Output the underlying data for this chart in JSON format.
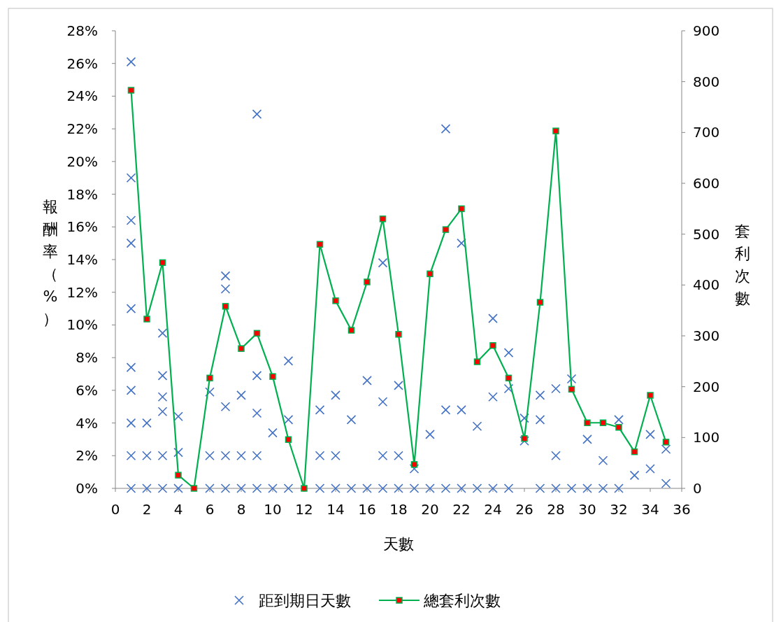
{
  "chart_data": {
    "type": "scatter",
    "xlabel": "天數",
    "ylabel": "報酬率（%）",
    "y2label": "套利次數",
    "xlim": [
      0,
      36
    ],
    "xticks": [
      0,
      2,
      4,
      6,
      8,
      10,
      12,
      14,
      16,
      18,
      20,
      22,
      24,
      26,
      28,
      30,
      32,
      34,
      36
    ],
    "ylim": [
      0,
      28
    ],
    "yticks": [
      {
        "value": 0,
        "label": "0%"
      },
      {
        "value": 2,
        "label": "2%"
      },
      {
        "value": 4,
        "label": "4%"
      },
      {
        "value": 6,
        "label": "6%"
      },
      {
        "value": 8,
        "label": "8%"
      },
      {
        "value": 10,
        "label": "10%"
      },
      {
        "value": 12,
        "label": "12%"
      },
      {
        "value": 14,
        "label": "14%"
      },
      {
        "value": 16,
        "label": "16%"
      },
      {
        "value": 18,
        "label": "18%"
      },
      {
        "value": 20,
        "label": "20%"
      },
      {
        "value": 22,
        "label": "22%"
      },
      {
        "value": 24,
        "label": "24%"
      },
      {
        "value": 26,
        "label": "26%"
      },
      {
        "value": 28,
        "label": "28%"
      }
    ],
    "y2lim": [
      0,
      900
    ],
    "y2ticks": [
      0,
      100,
      200,
      300,
      400,
      500,
      600,
      700,
      800,
      900
    ],
    "grid": false,
    "legend": "bottom",
    "series": [
      {
        "name": "距到期日天數",
        "marker": "cross",
        "color": "#4472c4",
        "x": [
          1,
          1,
          1,
          1,
          1,
          1,
          1,
          1,
          1,
          1,
          2,
          2,
          2,
          3,
          3,
          3,
          3,
          3,
          3,
          4,
          4,
          4,
          6,
          6,
          6,
          7,
          7,
          7,
          7,
          7,
          8,
          8,
          8,
          9,
          9,
          9,
          9,
          9,
          10,
          10,
          11,
          11,
          11,
          13,
          13,
          13,
          14,
          14,
          14,
          15,
          15,
          16,
          16,
          17,
          17,
          17,
          17,
          18,
          18,
          18,
          19,
          19,
          20,
          20,
          21,
          21,
          21,
          22,
          22,
          22,
          23,
          23,
          24,
          24,
          24,
          25,
          25,
          25,
          26,
          26,
          27,
          27,
          27,
          28,
          28,
          28,
          29,
          29,
          30,
          30,
          31,
          31,
          32,
          32,
          33,
          34,
          34,
          35,
          35
        ],
        "values": [
          26.1,
          19.0,
          16.4,
          15.0,
          11.0,
          7.4,
          6.0,
          4.0,
          2.0,
          0,
          4.0,
          2.0,
          0,
          9.5,
          6.9,
          5.6,
          4.7,
          2.0,
          0,
          4.4,
          2.2,
          0,
          5.9,
          2.0,
          0,
          13.0,
          12.2,
          5.0,
          2.0,
          0,
          5.7,
          2.0,
          0,
          22.9,
          6.9,
          4.6,
          2.0,
          0,
          3.4,
          0,
          7.8,
          4.2,
          0,
          4.8,
          2.0,
          0,
          5.7,
          2.0,
          0,
          4.2,
          0,
          6.6,
          0,
          13.8,
          5.3,
          2.0,
          0,
          6.3,
          2.0,
          0,
          1.2,
          0,
          3.3,
          0,
          22.0,
          4.8,
          0,
          15.0,
          4.8,
          0,
          3.8,
          0,
          10.4,
          5.6,
          0,
          8.3,
          6.1,
          0,
          4.3,
          2.9,
          5.7,
          4.2,
          0,
          6.1,
          2.0,
          0,
          6.7,
          0,
          3.0,
          0,
          1.7,
          0,
          4.2,
          0,
          0.8,
          3.3,
          1.2,
          2.4,
          0.3
        ]
      },
      {
        "name": "總套利次數",
        "type": "line",
        "axis": "y2",
        "marker": "square",
        "line_style": "solid",
        "color": "#00b050",
        "x": [
          1,
          2,
          3,
          4,
          5,
          6,
          7,
          8,
          9,
          10,
          11,
          12,
          13,
          14,
          15,
          16,
          17,
          18,
          19,
          20,
          21,
          22,
          23,
          24,
          25,
          26,
          27,
          28,
          29,
          30,
          31,
          32,
          33,
          34,
          35
        ],
        "values": [
          783,
          333,
          444,
          26,
          0,
          217,
          358,
          275,
          305,
          220,
          96,
          0,
          480,
          369,
          311,
          406,
          530,
          303,
          47,
          422,
          509,
          550,
          249,
          281,
          217,
          98,
          366,
          703,
          195,
          129,
          129,
          120,
          72,
          183,
          91
        ]
      }
    ]
  }
}
